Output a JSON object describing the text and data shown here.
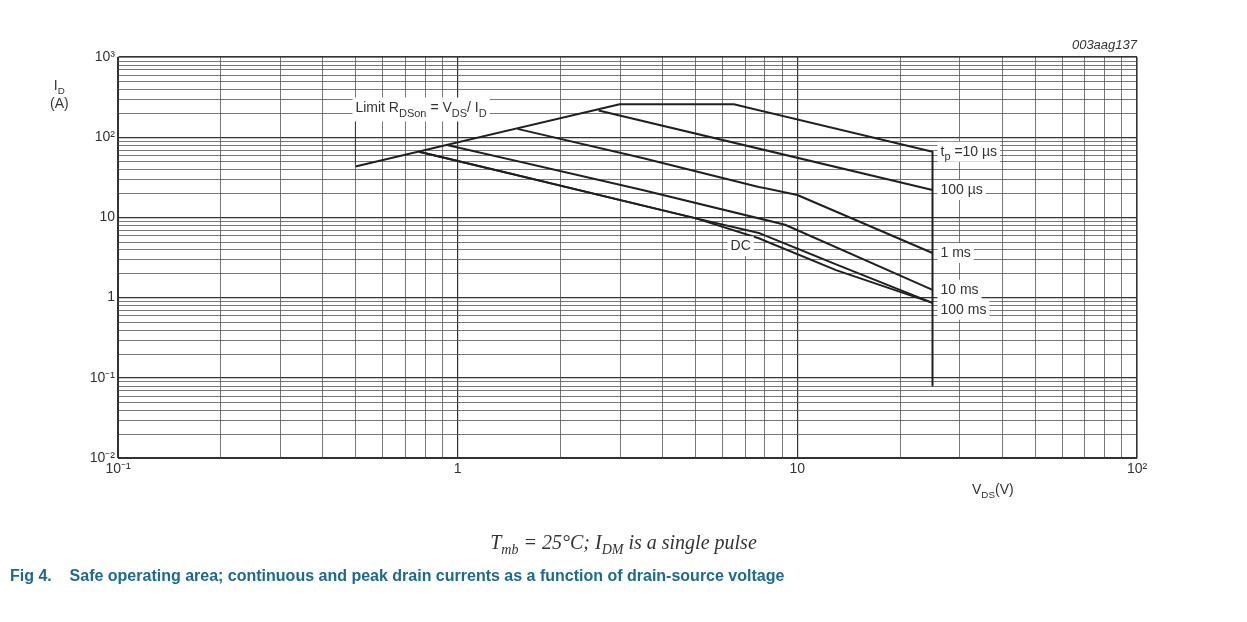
{
  "chart_data": {
    "type": "line",
    "title": "Fig 4.    Safe operating area; continuous and peak drain currents as a function of drain-source voltage",
    "xlabel": "V$_{DS}$(V)",
    "ylabel": "I$_{D}$\n(A)",
    "annotations": [
      "003aag137",
      "T$_{mb}$ = 25°C; I$_{DM}$ is a single pulse",
      {
        "text": "Limit R$_{DSon}$ = V$_{DS}$/ I$_{D}$",
        "x": 0.5,
        "y": 43
      }
    ],
    "log": "xy",
    "grid": true,
    "legend": false,
    "marker": "none",
    "line_style": "solid",
    "xlim": [
      0.1,
      100
    ],
    "xticks": [
      {
        "value": 0.1,
        "label": "10⁻¹"
      },
      1,
      10,
      {
        "value": 100,
        "label": "10²"
      }
    ],
    "ylim": [
      0.01,
      1000
    ],
    "yticks": [
      {
        "value": 0.01,
        "label": "10⁻²"
      },
      {
        "value": 0.1,
        "label": "10⁻¹"
      },
      1,
      10,
      {
        "value": 100,
        "label": "10²"
      },
      {
        "value": 1000,
        "label": "10³"
      }
    ],
    "series": [
      {
        "name": "t$_{p}$ =10 µs",
        "color": "#231f20",
        "x": [
          0.5,
          3,
          6.5,
          25,
          25
        ],
        "values": [
          43,
          258,
          258,
          66,
          0.08
        ]
      },
      {
        "name": "100 µs",
        "color": "#231f20",
        "x": [
          2.6,
          25
        ],
        "values": [
          215,
          22
        ]
      },
      {
        "name": "1 ms",
        "color": "#231f20",
        "x": [
          1.5,
          3.5,
          7.7,
          10,
          25
        ],
        "values": [
          127,
          55,
          24,
          19,
          3.6
        ]
      },
      {
        "name": "10 ms",
        "color": "#231f20",
        "x": [
          0.93,
          3.5,
          9.2,
          25
        ],
        "values": [
          80,
          22,
          8.1,
          1.25
        ]
      },
      {
        "name": "100 ms",
        "color": "#231f20",
        "x": [
          0.77,
          5,
          7.7,
          13,
          25
        ],
        "values": [
          66,
          9.8,
          6.4,
          2.6,
          0.86
        ]
      },
      {
        "name": "DC",
        "color": "#231f20",
        "x": [
          0.77,
          5,
          7.7,
          13,
          25
        ],
        "values": [
          66,
          9.8,
          5.5,
          2.2,
          0.86
        ]
      }
    ]
  }
}
